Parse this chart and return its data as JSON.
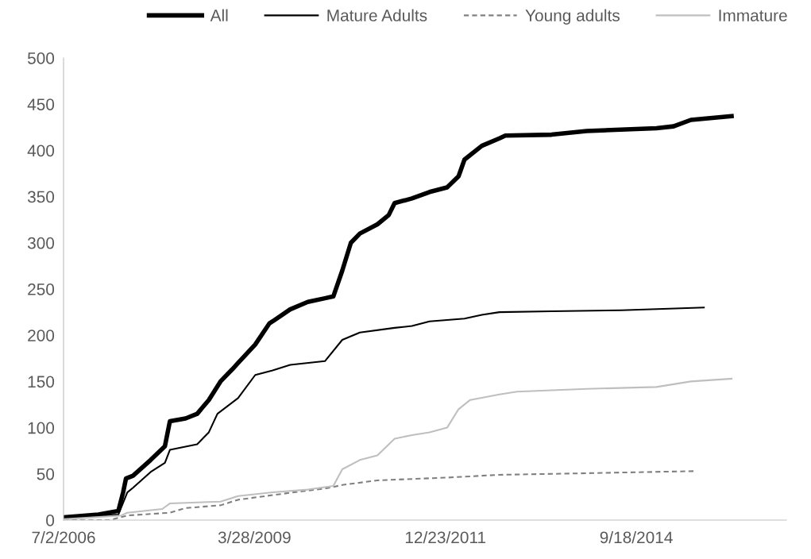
{
  "chart_data": {
    "type": "line",
    "xlim": [
      "2006-07-02",
      "2016-11-12"
    ],
    "xticks": [
      {
        "value": "2006-07-02",
        "label": "7/2/2006"
      },
      {
        "value": "2009-03-28",
        "label": "3/28/2009"
      },
      {
        "value": "2011-12-23",
        "label": "12/23/2011"
      },
      {
        "value": "2014-09-18",
        "label": "9/18/2014"
      }
    ],
    "ylim": [
      0,
      500
    ],
    "yticks": [
      0,
      50,
      100,
      150,
      200,
      250,
      300,
      350,
      400,
      450,
      500
    ],
    "grid": false,
    "legend": "top",
    "line_style": "solid",
    "series": [
      {
        "name": "All",
        "color": "#000000",
        "x": [
          "2006-07-02",
          "2007-01-01",
          "2007-04-15",
          "2007-05-10",
          "2007-05-25",
          "2007-07-01",
          "2007-10-01",
          "2007-12-15",
          "2008-01-10",
          "2008-04-01",
          "2008-06-01",
          "2008-08-01",
          "2008-10-01",
          "2008-12-01",
          "2009-01-01",
          "2009-04-01",
          "2009-06-15",
          "2009-07-01",
          "2009-10-01",
          "2010-01-01",
          "2010-04-01",
          "2010-05-15",
          "2010-07-01",
          "2010-08-15",
          "2010-10-01",
          "2011-01-01",
          "2011-03-01",
          "2011-04-01",
          "2011-07-01",
          "2011-10-01",
          "2012-01-01",
          "2012-03-01",
          "2012-04-01",
          "2012-07-01",
          "2012-10-01",
          "2012-11-01",
          "2013-07-01",
          "2014-01-01",
          "2015-01-01",
          "2015-04-01",
          "2015-07-01",
          "2016-01-30"
        ],
        "values": [
          3,
          6,
          10,
          30,
          45,
          48,
          65,
          80,
          107,
          110,
          115,
          130,
          150,
          163,
          170,
          190,
          213,
          215,
          228,
          236,
          240,
          242,
          270,
          300,
          310,
          320,
          330,
          343,
          348,
          355,
          360,
          372,
          390,
          405,
          413,
          416,
          417,
          421,
          424,
          426,
          433,
          437
        ]
      },
      {
        "name": "Mature Adults",
        "color": "#000000",
        "x": [
          "2006-07-02",
          "2007-04-15",
          "2007-06-01",
          "2007-07-01",
          "2007-10-01",
          "2007-12-15",
          "2008-01-10",
          "2008-06-01",
          "2008-08-01",
          "2008-09-15",
          "2009-01-01",
          "2009-04-01",
          "2009-07-01",
          "2009-10-01",
          "2010-04-01",
          "2010-07-01",
          "2010-10-01",
          "2011-04-01",
          "2011-07-01",
          "2011-10-01",
          "2012-04-01",
          "2012-07-01",
          "2012-10-01",
          "2013-07-01",
          "2014-07-01",
          "2015-09-07"
        ],
        "values": [
          2,
          6,
          30,
          35,
          52,
          62,
          76,
          82,
          95,
          115,
          132,
          157,
          162,
          168,
          172,
          195,
          203,
          208,
          210,
          215,
          218,
          222,
          225,
          226,
          227,
          230
        ]
      },
      {
        "name": "Young adults",
        "color": "#808080",
        "line_style": "dashed",
        "x": [
          "2006-07-02",
          "2007-03-01",
          "2007-06-01",
          "2008-01-10",
          "2008-04-01",
          "2008-10-01",
          "2009-01-01",
          "2009-07-01",
          "2010-01-01",
          "2010-04-01",
          "2010-07-01",
          "2011-01-01",
          "2012-01-01",
          "2012-10-01",
          "2013-07-01",
          "2015-07-25"
        ],
        "values": [
          0,
          0,
          5,
          8,
          13,
          16,
          22,
          27,
          32,
          34,
          38,
          43,
          46,
          49,
          50,
          53
        ]
      },
      {
        "name": "Immature",
        "color": "#bfbfbf",
        "x": [
          "2006-07-02",
          "2007-05-01",
          "2007-06-01",
          "2007-12-01",
          "2008-01-10",
          "2008-10-01",
          "2009-01-01",
          "2009-07-01",
          "2010-01-01",
          "2010-05-15",
          "2010-07-01",
          "2010-10-01",
          "2011-01-01",
          "2011-04-01",
          "2011-07-01",
          "2011-10-01",
          "2012-01-01",
          "2012-03-01",
          "2012-05-01",
          "2012-10-01",
          "2013-01-01",
          "2014-01-01",
          "2015-01-01",
          "2015-07-01",
          "2016-01-30"
        ],
        "values": [
          1,
          5,
          8,
          12,
          18,
          20,
          26,
          30,
          33,
          37,
          55,
          65,
          70,
          88,
          92,
          95,
          100,
          120,
          130,
          136,
          139,
          142,
          144,
          150,
          153
        ]
      }
    ]
  }
}
